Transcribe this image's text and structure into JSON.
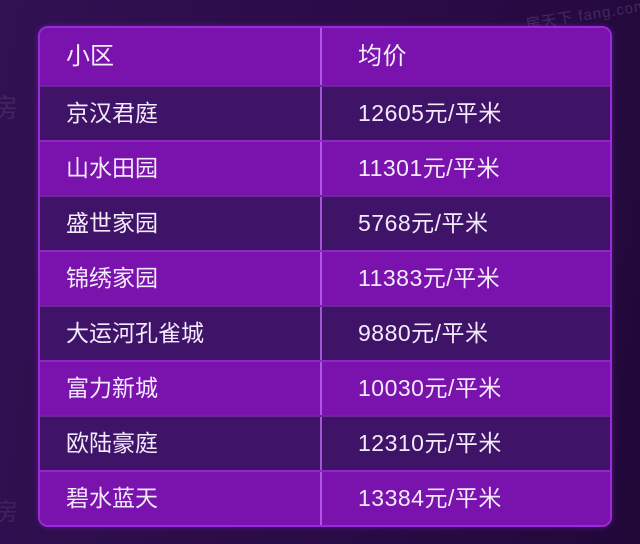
{
  "watermarks": {
    "top_right": "房天下 fang.com",
    "edge_glyph": "房"
  },
  "table": {
    "header": {
      "community": "小区",
      "avg_price": "均价"
    },
    "rows": [
      {
        "community": "京汉君庭",
        "avg_price": "12605元/平米"
      },
      {
        "community": "山水田园",
        "avg_price": "11301元/平米"
      },
      {
        "community": "盛世家园",
        "avg_price": "5768元/平米"
      },
      {
        "community": "锦绣家园",
        "avg_price": "11383元/平米"
      },
      {
        "community": "大运河孔雀城",
        "avg_price": "9880元/平米"
      },
      {
        "community": "富力新城",
        "avg_price": "10030元/平米"
      },
      {
        "community": "欧陆豪庭",
        "avg_price": "12310元/平米"
      },
      {
        "community": "碧水蓝天",
        "avg_price": "13384元/平米"
      }
    ]
  },
  "colors": {
    "page_bg": "#2a0b46",
    "header_bg": "#7a12ae",
    "row_bright": "#7a12ae",
    "row_dark": "#3f1368",
    "table_border": "#9a2bd8",
    "column_divider": "#c46ef5",
    "text": "#f3ebfb"
  },
  "chart_data": {
    "type": "table",
    "title": "",
    "columns": [
      "小区",
      "均价"
    ],
    "rows": [
      [
        "京汉君庭",
        "12605元/平米"
      ],
      [
        "山水田园",
        "11301元/平米"
      ],
      [
        "盛世家园",
        "5768元/平米"
      ],
      [
        "锦绣家园",
        "11383元/平米"
      ],
      [
        "大运河孔雀城",
        "9880元/平米"
      ],
      [
        "富力新城",
        "10030元/平米"
      ],
      [
        "欧陆豪庭",
        "12310元/平米"
      ],
      [
        "碧水蓝天",
        "13384元/平米"
      ]
    ],
    "values_numeric": [
      12605,
      11301,
      5768,
      11383,
      9880,
      10030,
      12310,
      13384
    ],
    "unit": "元/平米"
  }
}
